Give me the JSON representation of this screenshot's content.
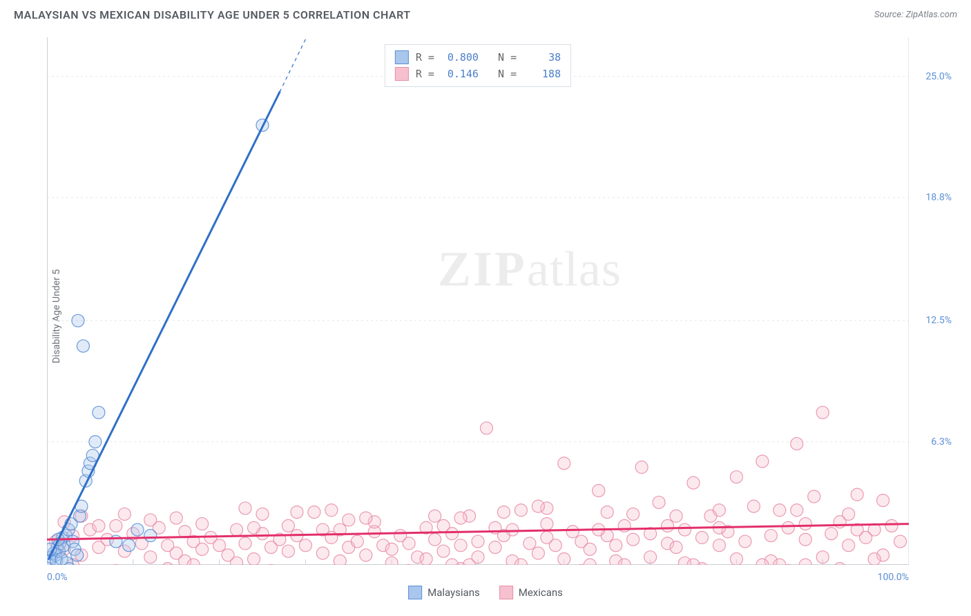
{
  "header": {
    "title": "MALAYSIAN VS MEXICAN DISABILITY AGE UNDER 5 CORRELATION CHART",
    "source_prefix": "Source: ",
    "source_link": "ZipAtlas.com"
  },
  "ylabel": "Disability Age Under 5",
  "watermark": {
    "zip": "ZIP",
    "atlas": "atlas"
  },
  "chart": {
    "type": "scatter",
    "background_color": "#ffffff",
    "grid_color": "#e2e5ea",
    "axis_color": "#c9ced6",
    "tick_color": "#c9ced6",
    "xlim": [
      0,
      100
    ],
    "ylim": [
      0,
      27
    ],
    "x_ticks_visible": [
      0,
      100
    ],
    "x_tick_labels": [
      "0.0%",
      "100.0%"
    ],
    "x_minor_ticks": [
      10,
      20,
      30,
      40,
      50,
      60,
      70,
      80,
      90
    ],
    "y_gridlines": [
      6.3,
      12.5,
      18.8,
      25.0
    ],
    "y_tick_labels": [
      "6.3%",
      "12.5%",
      "18.8%",
      "25.0%"
    ],
    "point_radius": 9,
    "point_fill_opacity": 0.35,
    "point_stroke_width": 1.2,
    "trend_line_width": 3,
    "trend_dash_width": 1.2,
    "series": [
      {
        "key": "malaysians",
        "label": "Malaysians",
        "color_stroke": "#5b8fd6",
        "color_fill": "#a9c6ec",
        "trend_color": "#2f6fc7",
        "R": "0.800",
        "N": "38",
        "trend": {
          "x1": 0.2,
          "y1": 0.3,
          "x2": 27,
          "y2": 24.2,
          "dash_x2": 31,
          "dash_y2": 27.8
        },
        "points": [
          [
            0.3,
            0.2
          ],
          [
            0.5,
            0.4
          ],
          [
            0.8,
            0.6
          ],
          [
            1.0,
            0.5
          ],
          [
            1.2,
            0.9
          ],
          [
            1.5,
            1.1
          ],
          [
            1.8,
            1.4
          ],
          [
            0.6,
            -0.3
          ],
          [
            0.9,
            -0.5
          ],
          [
            1.1,
            0.2
          ],
          [
            1.4,
            0.7
          ],
          [
            1.7,
            0.3
          ],
          [
            2.0,
            1.0
          ],
          [
            2.2,
            1.5
          ],
          [
            2.5,
            1.8
          ],
          [
            2.8,
            2.1
          ],
          [
            3.0,
            1.2
          ],
          [
            3.2,
            0.8
          ],
          [
            3.5,
            0.5
          ],
          [
            3.8,
            2.5
          ],
          [
            4.0,
            3.0
          ],
          [
            4.5,
            4.3
          ],
          [
            4.8,
            4.8
          ],
          [
            5.0,
            5.2
          ],
          [
            5.3,
            5.6
          ],
          [
            5.6,
            6.3
          ],
          [
            6.0,
            7.8
          ],
          [
            4.2,
            11.2
          ],
          [
            3.6,
            12.5
          ],
          [
            25.0,
            22.5
          ],
          [
            8.0,
            1.2
          ],
          [
            9.5,
            1.0
          ],
          [
            10.5,
            1.8
          ],
          [
            12.0,
            1.5
          ],
          [
            2.3,
            0.1
          ],
          [
            2.6,
            -0.2
          ],
          [
            1.3,
            1.3
          ],
          [
            0.4,
            0.8
          ]
        ]
      },
      {
        "key": "mexicans",
        "label": "Mexicans",
        "color_stroke": "#e88fa8",
        "color_fill": "#f6c0cf",
        "trend_color": "#e32e6b",
        "R": "0.146",
        "N": "188",
        "trend": {
          "x1": 0,
          "y1": 1.3,
          "x2": 100,
          "y2": 2.1
        },
        "points": [
          [
            1,
            1.2
          ],
          [
            2,
            0.8
          ],
          [
            3,
            1.5
          ],
          [
            4,
            0.5
          ],
          [
            5,
            1.8
          ],
          [
            6,
            0.9
          ],
          [
            7,
            1.3
          ],
          [
            8,
            2.0
          ],
          [
            9,
            0.7
          ],
          [
            10,
            1.6
          ],
          [
            11,
            1.1
          ],
          [
            12,
            0.4
          ],
          [
            13,
            1.9
          ],
          [
            14,
            1.0
          ],
          [
            15,
            0.6
          ],
          [
            16,
            1.7
          ],
          [
            17,
            1.2
          ],
          [
            18,
            0.8
          ],
          [
            19,
            1.4
          ],
          [
            20,
            1.0
          ],
          [
            21,
            0.5
          ],
          [
            22,
            1.8
          ],
          [
            23,
            1.1
          ],
          [
            24,
            0.3
          ],
          [
            25,
            1.6
          ],
          [
            26,
            0.9
          ],
          [
            27,
            1.3
          ],
          [
            28,
            0.7
          ],
          [
            29,
            1.5
          ],
          [
            30,
            1.0
          ],
          [
            31,
            2.7
          ],
          [
            32,
            0.6
          ],
          [
            33,
            1.4
          ],
          [
            34,
            1.8
          ],
          [
            35,
            0.9
          ],
          [
            36,
            1.2
          ],
          [
            37,
            0.5
          ],
          [
            38,
            1.7
          ],
          [
            39,
            1.0
          ],
          [
            40,
            0.8
          ],
          [
            41,
            1.5
          ],
          [
            42,
            1.1
          ],
          [
            43,
            0.4
          ],
          [
            44,
            1.9
          ],
          [
            45,
            1.3
          ],
          [
            46,
            0.7
          ],
          [
            47,
            1.6
          ],
          [
            48,
            1.0
          ],
          [
            49,
            2.5
          ],
          [
            50,
            1.2
          ],
          [
            51,
            7.0
          ],
          [
            52,
            0.9
          ],
          [
            53,
            1.5
          ],
          [
            54,
            1.8
          ],
          [
            55,
            2.8
          ],
          [
            56,
            1.1
          ],
          [
            57,
            0.6
          ],
          [
            58,
            1.4
          ],
          [
            59,
            1.0
          ],
          [
            60,
            5.2
          ],
          [
            61,
            1.7
          ],
          [
            62,
            1.2
          ],
          [
            63,
            0.8
          ],
          [
            64,
            3.8
          ],
          [
            65,
            1.5
          ],
          [
            66,
            1.0
          ],
          [
            67,
            2.0
          ],
          [
            68,
            1.3
          ],
          [
            69,
            5.0
          ],
          [
            70,
            1.6
          ],
          [
            71,
            3.2
          ],
          [
            72,
            1.1
          ],
          [
            73,
            0.9
          ],
          [
            74,
            1.8
          ],
          [
            75,
            4.2
          ],
          [
            76,
            1.4
          ],
          [
            77,
            2.5
          ],
          [
            78,
            1.0
          ],
          [
            79,
            1.7
          ],
          [
            80,
            4.5
          ],
          [
            81,
            1.2
          ],
          [
            82,
            3.0
          ],
          [
            83,
            5.3
          ],
          [
            84,
            1.5
          ],
          [
            85,
            2.8
          ],
          [
            86,
            1.9
          ],
          [
            87,
            6.2
          ],
          [
            88,
            1.3
          ],
          [
            89,
            3.5
          ],
          [
            90,
            7.8
          ],
          [
            91,
            1.6
          ],
          [
            92,
            2.2
          ],
          [
            93,
            1.0
          ],
          [
            94,
            3.6
          ],
          [
            95,
            1.4
          ],
          [
            96,
            1.8
          ],
          [
            97,
            0.5
          ],
          [
            98,
            2.0
          ],
          [
            99,
            1.2
          ],
          [
            2,
            2.2
          ],
          [
            4,
            2.5
          ],
          [
            6,
            2.0
          ],
          [
            8,
            -0.3
          ],
          [
            10,
            -0.5
          ],
          [
            12,
            2.3
          ],
          [
            14,
            -0.2
          ],
          [
            16,
            0.2
          ],
          [
            18,
            2.1
          ],
          [
            20,
            -0.4
          ],
          [
            22,
            0.1
          ],
          [
            24,
            1.9
          ],
          [
            26,
            -0.3
          ],
          [
            28,
            2.0
          ],
          [
            30,
            -0.5
          ],
          [
            32,
            1.8
          ],
          [
            34,
            0.2
          ],
          [
            36,
            -0.4
          ],
          [
            38,
            2.2
          ],
          [
            40,
            0.1
          ],
          [
            42,
            -0.3
          ],
          [
            44,
            0.3
          ],
          [
            46,
            2.0
          ],
          [
            48,
            -0.2
          ],
          [
            50,
            0.4
          ],
          [
            52,
            1.9
          ],
          [
            54,
            0.2
          ],
          [
            56,
            -0.4
          ],
          [
            58,
            2.1
          ],
          [
            60,
            0.3
          ],
          [
            62,
            -0.3
          ],
          [
            64,
            1.8
          ],
          [
            66,
            0.2
          ],
          [
            68,
            -0.5
          ],
          [
            70,
            0.4
          ],
          [
            72,
            2.0
          ],
          [
            74,
            0.1
          ],
          [
            76,
            -0.2
          ],
          [
            78,
            1.9
          ],
          [
            80,
            0.3
          ],
          [
            82,
            -0.4
          ],
          [
            84,
            0.2
          ],
          [
            86,
            -0.3
          ],
          [
            88,
            2.1
          ],
          [
            90,
            0.4
          ],
          [
            92,
            -0.2
          ],
          [
            94,
            1.8
          ],
          [
            96,
            0.3
          ],
          [
            98,
            -0.4
          ],
          [
            15,
            2.4
          ],
          [
            25,
            2.6
          ],
          [
            35,
            2.3
          ],
          [
            45,
            2.5
          ],
          [
            55,
            0.0
          ],
          [
            65,
            2.7
          ],
          [
            75,
            0.0
          ],
          [
            85,
            0.0
          ],
          [
            3,
            0.0
          ],
          [
            7,
            -0.6
          ],
          [
            33,
            2.8
          ],
          [
            48,
            2.4
          ],
          [
            58,
            2.9
          ],
          [
            68,
            2.6
          ],
          [
            78,
            2.8
          ],
          [
            88,
            0.0
          ],
          [
            13,
            -0.6
          ],
          [
            23,
            2.9
          ],
          [
            43,
            -0.5
          ],
          [
            53,
            2.7
          ],
          [
            63,
            0.0
          ],
          [
            73,
            2.5
          ],
          [
            83,
            0.0
          ],
          [
            93,
            2.6
          ],
          [
            17,
            0.0
          ],
          [
            27,
            -0.6
          ],
          [
            37,
            2.4
          ],
          [
            47,
            0.0
          ],
          [
            57,
            3.0
          ],
          [
            67,
            0.0
          ],
          [
            77,
            -0.5
          ],
          [
            87,
            2.8
          ],
          [
            97,
            3.3
          ],
          [
            9,
            2.6
          ],
          [
            19,
            -0.5
          ],
          [
            29,
            2.7
          ],
          [
            39,
            -0.6
          ],
          [
            49,
            0.0
          ],
          [
            59,
            -0.4
          ]
        ]
      }
    ]
  },
  "bottom_legend": [
    {
      "label": "Malaysians",
      "fill": "#a9c6ec",
      "stroke": "#5b8fd6"
    },
    {
      "label": "Mexicans",
      "fill": "#f6c0cf",
      "stroke": "#e88fa8"
    }
  ]
}
